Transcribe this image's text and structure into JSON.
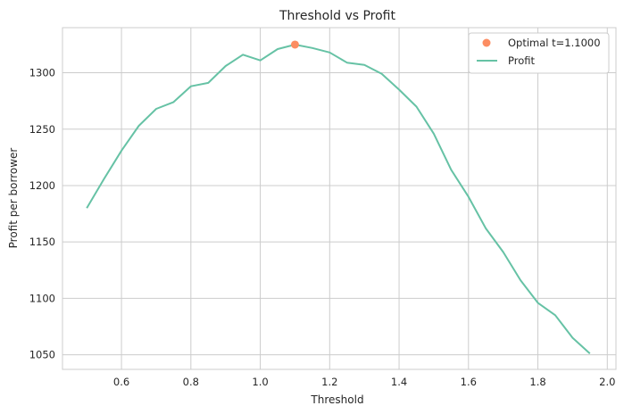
{
  "chart_data": {
    "type": "line",
    "title": "Threshold vs Profit",
    "xlabel": "Threshold",
    "ylabel": "Profit per borrower",
    "xlim": [
      0.43,
      2.025
    ],
    "ylim": [
      1037,
      1340
    ],
    "xticks": [
      0.6,
      0.8,
      1.0,
      1.2,
      1.4,
      1.6,
      1.8,
      2.0
    ],
    "xtick_labels": [
      "0.6",
      "0.8",
      "1.0",
      "1.2",
      "1.4",
      "1.6",
      "1.8",
      "2.0"
    ],
    "yticks": [
      1050,
      1100,
      1150,
      1200,
      1250,
      1300
    ],
    "ytick_labels": [
      "1050",
      "1100",
      "1150",
      "1200",
      "1250",
      "1300"
    ],
    "grid": true,
    "legend_position": "top-right",
    "series": [
      {
        "name": "Profit",
        "kind": "line",
        "color": "#66c2a5",
        "x": [
          0.5,
          0.55,
          0.6,
          0.65,
          0.7,
          0.75,
          0.8,
          0.85,
          0.9,
          0.95,
          1.0,
          1.05,
          1.1,
          1.15,
          1.2,
          1.25,
          1.3,
          1.35,
          1.4,
          1.45,
          1.5,
          1.55,
          1.6,
          1.65,
          1.7,
          1.75,
          1.8,
          1.85,
          1.9,
          1.95
        ],
        "y": [
          1180,
          1206,
          1231,
          1253,
          1268,
          1274,
          1288,
          1291,
          1306,
          1316,
          1311,
          1321,
          1325,
          1322,
          1318,
          1309,
          1307,
          1299,
          1285,
          1270,
          1246,
          1214,
          1190,
          1162,
          1141,
          1116,
          1096,
          1085,
          1065,
          1051
        ]
      },
      {
        "name": "Optimal t=1.1000",
        "kind": "point",
        "color": "#fc8d62",
        "x": [
          1.1
        ],
        "y": [
          1325
        ]
      }
    ],
    "legend_entries": [
      "Optimal t=1.1000",
      "Profit"
    ]
  }
}
